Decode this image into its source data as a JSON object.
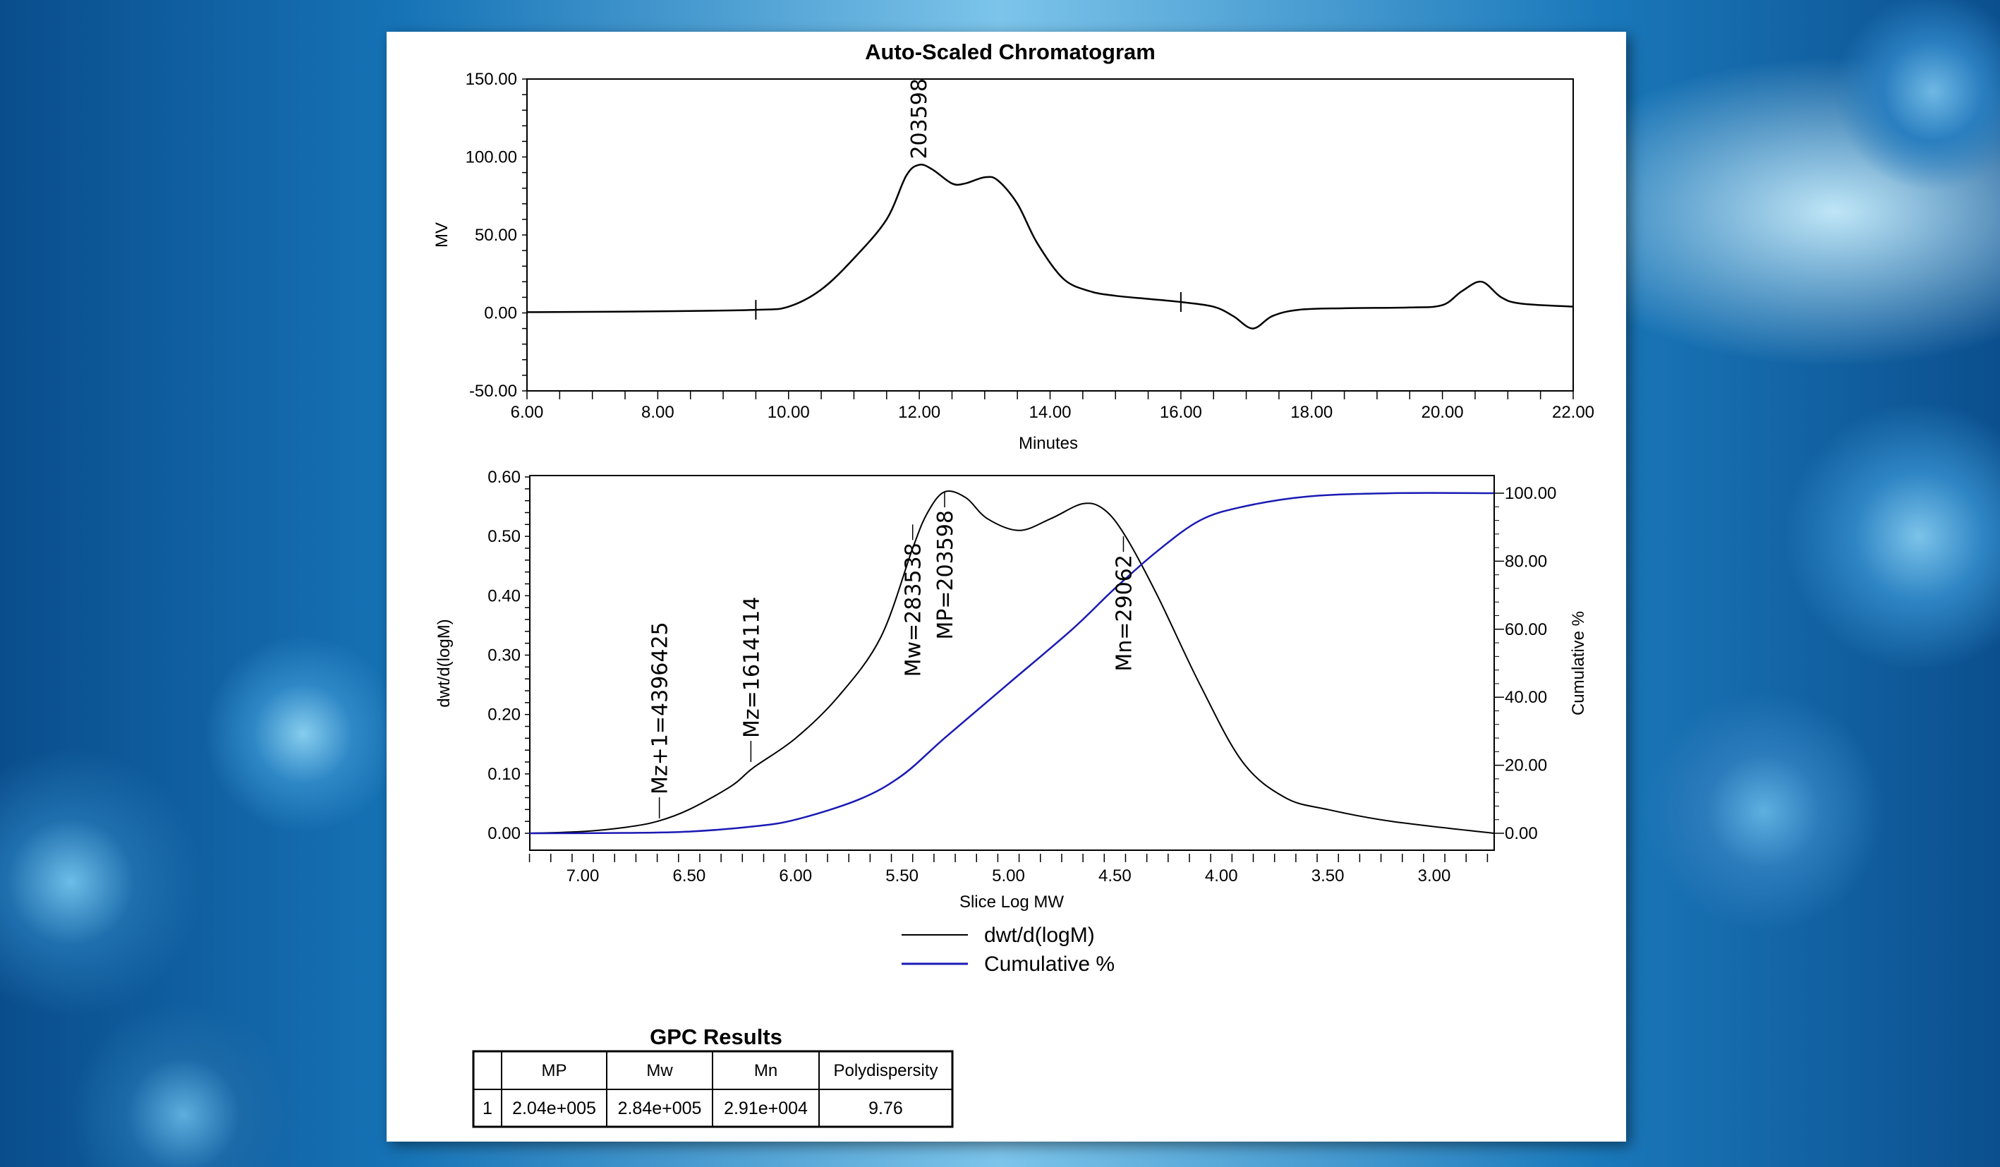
{
  "chart_data": [
    {
      "type": "line",
      "title": "Auto-Scaled Chromatogram",
      "xlabel": "Minutes",
      "ylabel": "MV",
      "xlim": [
        6,
        22
      ],
      "ylim": [
        -50,
        150
      ],
      "xticks": [
        "6.00",
        "8.00",
        "10.00",
        "12.00",
        "14.00",
        "16.00",
        "18.00",
        "20.00",
        "22.00"
      ],
      "yticks": [
        "150.00",
        "100.00",
        "50.00",
        "0.00",
        "-50.00"
      ],
      "series": [
        {
          "name": "MV",
          "color": "#000000",
          "x": [
            6,
            8,
            9.5,
            10,
            10.5,
            11,
            11.5,
            11.8,
            12,
            12.2,
            12.5,
            12.7,
            13,
            13.2,
            13.5,
            13.8,
            14.2,
            14.6,
            15,
            15.5,
            16,
            16.5,
            16.8,
            17.1,
            17.4,
            17.8,
            18.5,
            19.5,
            20,
            20.3,
            20.6,
            20.9,
            21.2,
            22
          ],
          "y": [
            0.5,
            1,
            2,
            4,
            15,
            35,
            60,
            88,
            95,
            92,
            83,
            83,
            87,
            85,
            70,
            45,
            22,
            14,
            11,
            9,
            7,
            4,
            -2,
            -10,
            -2,
            2,
            3,
            3.5,
            5,
            14,
            20,
            10,
            6,
            4
          ]
        }
      ],
      "markers": [
        9.5,
        16
      ],
      "peak_label": {
        "x": 12,
        "y": 95,
        "text": "203598"
      }
    },
    {
      "type": "line",
      "xlabel": "Slice Log MW",
      "ylabel": "dwt/d(logM)",
      "y2label": "Cumulative %",
      "xlim": [
        7.25,
        2.72
      ],
      "ylim": [
        0,
        0.6
      ],
      "y2lim": [
        0,
        100
      ],
      "xticks": [
        "7.00",
        "6.50",
        "6.00",
        "5.50",
        "5.00",
        "4.50",
        "4.00",
        "3.50",
        "3.00"
      ],
      "yticks": [
        "0.60",
        "0.50",
        "0.40",
        "0.30",
        "0.20",
        "0.10",
        "0.00"
      ],
      "y2ticks": [
        "100.00",
        "80.00",
        "60.00",
        "40.00",
        "20.00",
        "0.00"
      ],
      "series": [
        {
          "name": "dwt/d(logM)",
          "color": "#000000",
          "x": [
            7.25,
            7,
            6.8,
            6.65,
            6.5,
            6.3,
            6.2,
            6,
            5.8,
            5.6,
            5.45,
            5.38,
            5.3,
            5.2,
            5.1,
            4.95,
            4.8,
            4.65,
            4.55,
            4.45,
            4.3,
            4.1,
            3.9,
            3.7,
            3.5,
            3.2,
            2.72
          ],
          "y": [
            0,
            0.003,
            0.01,
            0.02,
            0.04,
            0.08,
            0.11,
            0.16,
            0.23,
            0.33,
            0.48,
            0.54,
            0.575,
            0.565,
            0.53,
            0.51,
            0.53,
            0.555,
            0.545,
            0.5,
            0.4,
            0.25,
            0.12,
            0.06,
            0.04,
            0.02,
            0
          ]
        },
        {
          "name": "Cumulative %",
          "color": "#1a1ab4",
          "axis": "y2",
          "x": [
            7.25,
            6.8,
            6.5,
            6.2,
            6,
            5.7,
            5.5,
            5.3,
            5,
            4.7,
            4.5,
            4.3,
            4.1,
            3.9,
            3.6,
            3.2,
            2.72
          ],
          "y": [
            0,
            0.1,
            0.5,
            2,
            4,
            10,
            17,
            28,
            44,
            60,
            72,
            83,
            92,
            96,
            99,
            100,
            100
          ]
        }
      ],
      "annotations": [
        {
          "x": 6.64,
          "y": 0.025,
          "text": "Mz+1=4396425"
        },
        {
          "x": 6.21,
          "y": 0.12,
          "text": "Mz=1614114"
        },
        {
          "x": 5.45,
          "y": 0.52,
          "text": "Mw=283538"
        },
        {
          "x": 5.3,
          "y": 0.575,
          "text": "MP=203598"
        },
        {
          "x": 4.46,
          "y": 0.5,
          "text": "Mn=29062"
        }
      ],
      "legend": [
        "dwt/d(logM)",
        "Cumulative %"
      ]
    }
  ],
  "table": {
    "title": "GPC Results",
    "headers": [
      "",
      "MP",
      "Mw",
      "Mn",
      "Polydispersity"
    ],
    "rows": [
      [
        "1",
        "2.04e+005",
        "2.84e+005",
        "2.91e+004",
        "9.76"
      ]
    ]
  }
}
